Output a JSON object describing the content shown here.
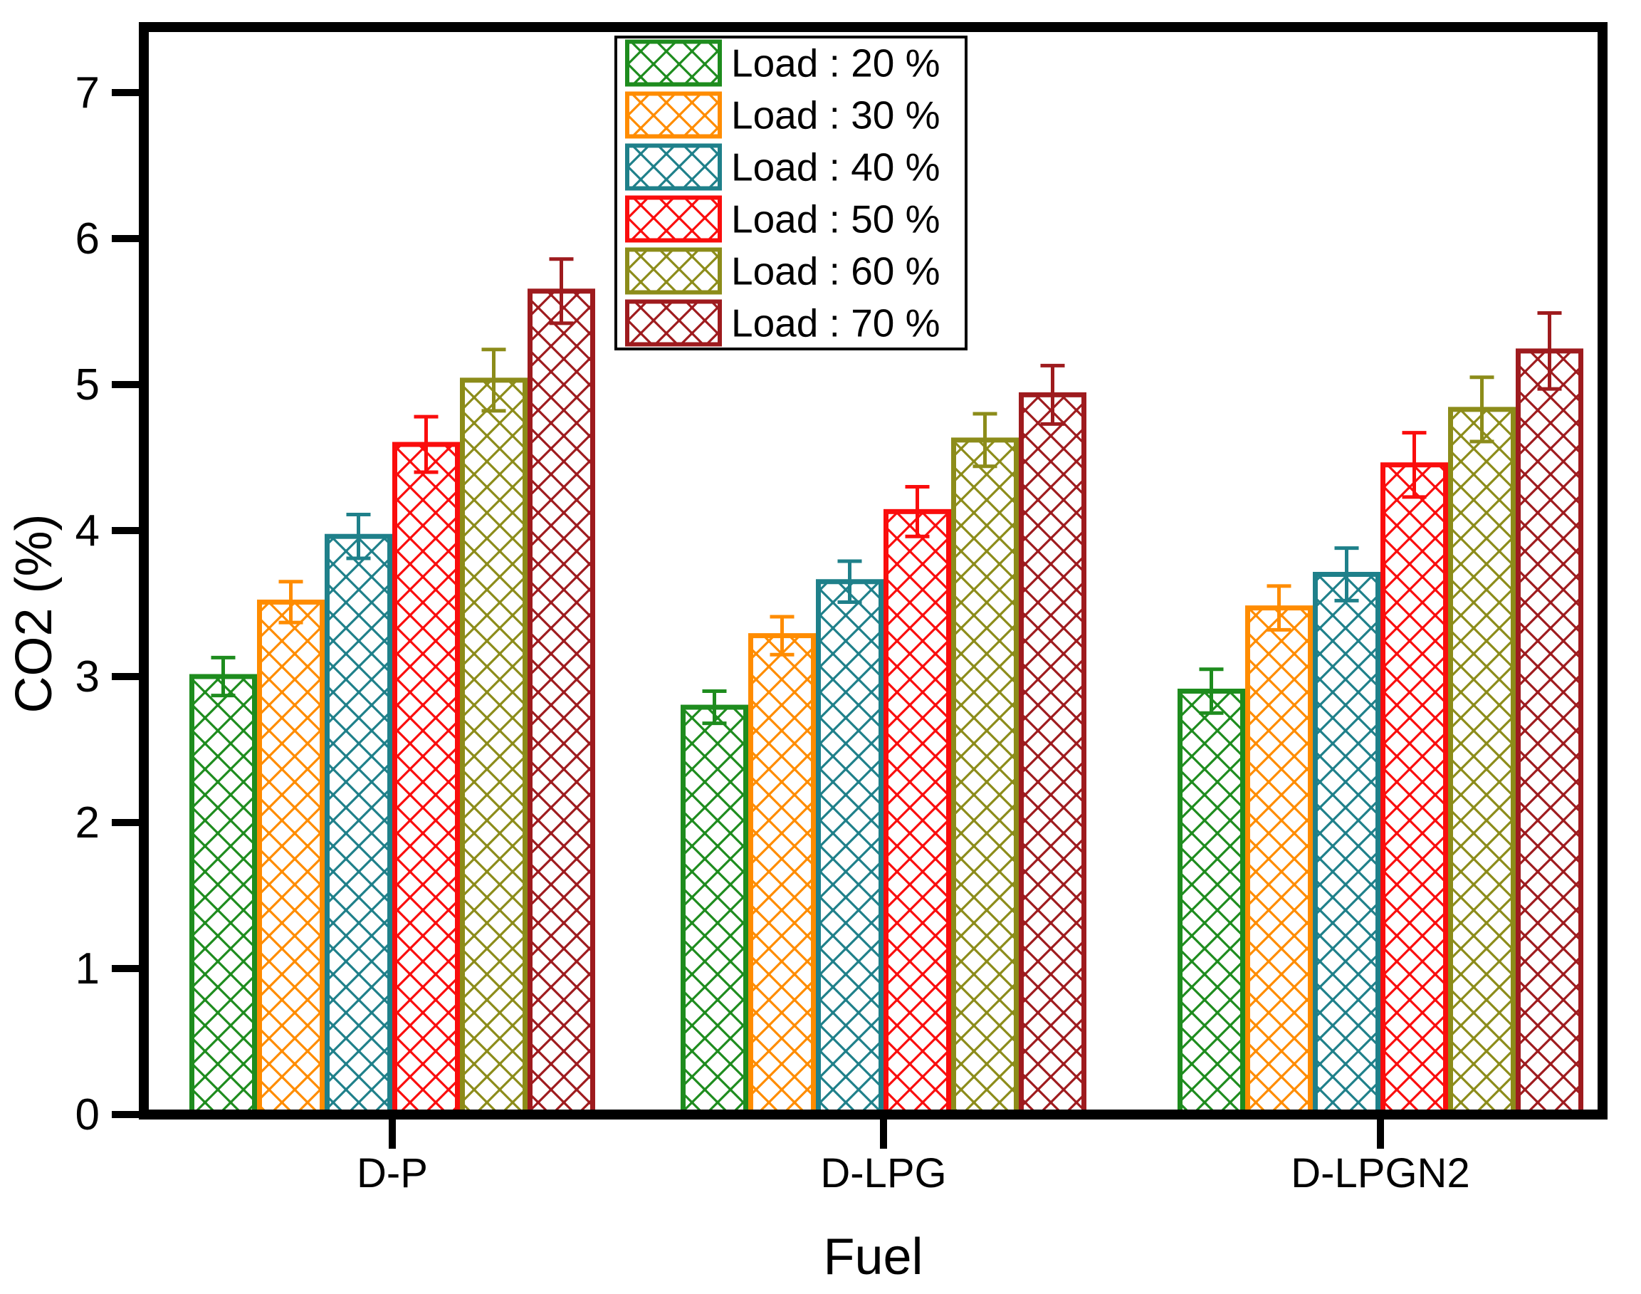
{
  "chart_data": {
    "type": "bar",
    "title": "",
    "xlabel": "Fuel",
    "ylabel": "CO2 (%)",
    "ylim": [
      0,
      7
    ],
    "yticks": [
      0,
      1,
      2,
      3,
      4,
      5,
      6,
      7
    ],
    "categories": [
      "D-P",
      "D-LPG",
      "D-LPGN2"
    ],
    "grid": "off",
    "legend_position": "top-center-inside",
    "bar_style": "crosshatch-outline",
    "error_bars": true,
    "series": [
      {
        "label": "Load : 20 %",
        "color": "#1E8C1E",
        "values": [
          3.0,
          2.79,
          2.9
        ],
        "errors": [
          0.13,
          0.11,
          0.15
        ]
      },
      {
        "label": "Load : 30 %",
        "color": "#FF8C00",
        "values": [
          3.51,
          3.28,
          3.47
        ],
        "errors": [
          0.14,
          0.13,
          0.15
        ]
      },
      {
        "label": "Load : 40 %",
        "color": "#1F808A",
        "values": [
          3.96,
          3.65,
          3.7
        ],
        "errors": [
          0.15,
          0.14,
          0.18
        ]
      },
      {
        "label": "Load : 50 %",
        "color": "#FA0D0D",
        "values": [
          4.59,
          4.13,
          4.45
        ],
        "errors": [
          0.19,
          0.17,
          0.22
        ]
      },
      {
        "label": "Load : 60 %",
        "color": "#8C8C1A",
        "values": [
          5.03,
          4.62,
          4.83
        ],
        "errors": [
          0.21,
          0.18,
          0.22
        ]
      },
      {
        "label": "Load : 70 %",
        "color": "#9E1B1E",
        "values": [
          5.64,
          4.93,
          5.23
        ],
        "errors": [
          0.22,
          0.2,
          0.26
        ]
      }
    ],
    "frame_color": "#000000",
    "background_color": "#ffffff"
  }
}
